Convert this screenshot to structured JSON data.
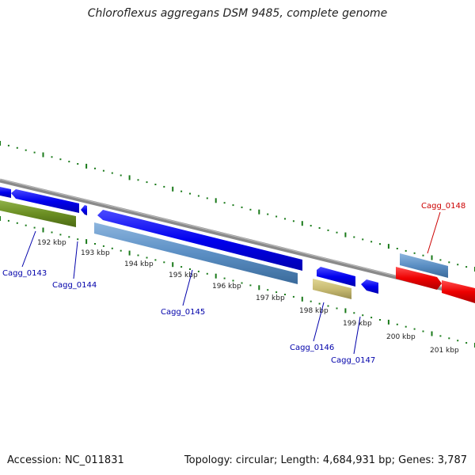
{
  "title": "Chloroflexus aggregans DSM 9485, complete genome",
  "footer": {
    "accession": "Accession: NC_011831",
    "summary": "Topology: circular; Length: 4,684,931 bp; Genes: 3,787"
  },
  "scale_labels": [
    "192 kbp",
    "193 kbp",
    "194 kbp",
    "195 kbp",
    "196 kbp",
    "197 kbp",
    "198 kbp",
    "199 kbp",
    "200 kbp",
    "201 kbp"
  ],
  "genes": [
    {
      "id": "Cagg_0143",
      "color": "#0000aa"
    },
    {
      "id": "Cagg_0144",
      "color": "#0000aa"
    },
    {
      "id": "Cagg_0145",
      "color": "#0000aa"
    },
    {
      "id": "Cagg_0146",
      "color": "#0000aa"
    },
    {
      "id": "Cagg_0147",
      "color": "#0000aa"
    },
    {
      "id": "Cagg_0148",
      "color": "#cc0000"
    }
  ],
  "colors": {
    "cds_blue": "#0000ee",
    "rna_steelblue": "#5b8fc4",
    "olive": "#6b8e23",
    "khaki": "#c8bb72",
    "red": "#ee0000",
    "backbone": "#888888",
    "tick_green": "#1a7a1a"
  }
}
